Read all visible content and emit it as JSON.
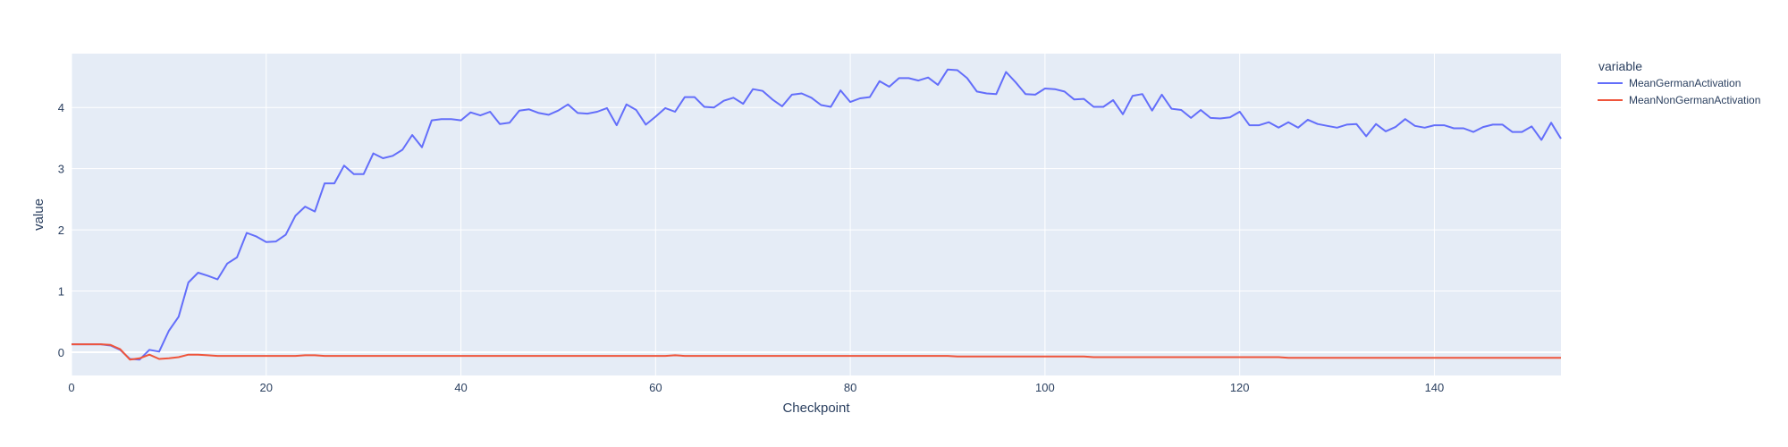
{
  "chart_data": {
    "type": "line",
    "title": "",
    "xlabel": "Checkpoint",
    "ylabel": "value",
    "xlim": [
      0,
      153
    ],
    "ylim": [
      -0.38,
      4.88
    ],
    "x_ticks": [
      0,
      20,
      40,
      60,
      80,
      100,
      120,
      140
    ],
    "y_ticks": [
      0,
      1,
      2,
      3,
      4
    ],
    "grid": true,
    "legend": {
      "title": "variable",
      "position": "right"
    },
    "plot_bg": "#e5ecf6",
    "series": [
      {
        "name": "MeanGermanActivation",
        "color": "#636efa",
        "values": [
          0.13,
          0.13,
          0.13,
          0.13,
          0.11,
          0.04,
          -0.11,
          -0.12,
          0.04,
          0.01,
          0.35,
          0.58,
          1.14,
          1.3,
          1.25,
          1.19,
          1.45,
          1.55,
          1.95,
          1.89,
          1.8,
          1.81,
          1.92,
          2.23,
          2.38,
          2.3,
          2.76,
          2.76,
          3.05,
          2.91,
          2.91,
          3.25,
          3.17,
          3.21,
          3.31,
          3.55,
          3.35,
          3.79,
          3.81,
          3.81,
          3.79,
          3.92,
          3.87,
          3.93,
          3.73,
          3.75,
          3.95,
          3.97,
          3.91,
          3.88,
          3.95,
          4.05,
          3.91,
          3.9,
          3.93,
          3.99,
          3.71,
          4.05,
          3.96,
          3.72,
          3.85,
          3.99,
          3.93,
          4.17,
          4.17,
          4.01,
          4.0,
          4.11,
          4.16,
          4.06,
          4.3,
          4.27,
          4.13,
          4.02,
          4.21,
          4.23,
          4.16,
          4.04,
          4.01,
          4.28,
          4.09,
          4.15,
          4.17,
          4.43,
          4.34,
          4.48,
          4.48,
          4.44,
          4.49,
          4.37,
          4.62,
          4.61,
          4.48,
          4.26,
          4.23,
          4.22,
          4.58,
          4.41,
          4.22,
          4.21,
          4.31,
          4.3,
          4.26,
          4.13,
          4.14,
          4.01,
          4.01,
          4.12,
          3.89,
          4.19,
          4.22,
          3.95,
          4.21,
          3.98,
          3.96,
          3.83,
          3.96,
          3.83,
          3.82,
          3.84,
          3.93,
          3.71,
          3.71,
          3.76,
          3.67,
          3.76,
          3.67,
          3.8,
          3.73,
          3.7,
          3.67,
          3.72,
          3.73,
          3.53,
          3.73,
          3.61,
          3.68,
          3.81,
          3.7,
          3.67,
          3.71,
          3.71,
          3.66,
          3.66,
          3.6,
          3.68,
          3.72,
          3.72,
          3.6,
          3.6,
          3.69,
          3.47,
          3.75,
          3.49
        ]
      },
      {
        "name": "MeanNonGermanActivation",
        "color": "#ef553b",
        "values": [
          0.13,
          0.13,
          0.13,
          0.13,
          0.12,
          0.05,
          -0.12,
          -0.1,
          -0.04,
          -0.11,
          -0.1,
          -0.08,
          -0.04,
          -0.04,
          -0.05,
          -0.06,
          -0.06,
          -0.06,
          -0.06,
          -0.06,
          -0.06,
          -0.06,
          -0.06,
          -0.06,
          -0.05,
          -0.05,
          -0.06,
          -0.06,
          -0.06,
          -0.06,
          -0.06,
          -0.06,
          -0.06,
          -0.06,
          -0.06,
          -0.06,
          -0.06,
          -0.06,
          -0.06,
          -0.06,
          -0.06,
          -0.06,
          -0.06,
          -0.06,
          -0.06,
          -0.06,
          -0.06,
          -0.06,
          -0.06,
          -0.06,
          -0.06,
          -0.06,
          -0.06,
          -0.06,
          -0.06,
          -0.06,
          -0.06,
          -0.06,
          -0.06,
          -0.06,
          -0.06,
          -0.06,
          -0.05,
          -0.06,
          -0.06,
          -0.06,
          -0.06,
          -0.06,
          -0.06,
          -0.06,
          -0.06,
          -0.06,
          -0.06,
          -0.06,
          -0.06,
          -0.06,
          -0.06,
          -0.06,
          -0.06,
          -0.06,
          -0.06,
          -0.06,
          -0.06,
          -0.06,
          -0.06,
          -0.06,
          -0.06,
          -0.06,
          -0.06,
          -0.06,
          -0.06,
          -0.07,
          -0.07,
          -0.07,
          -0.07,
          -0.07,
          -0.07,
          -0.07,
          -0.07,
          -0.07,
          -0.07,
          -0.07,
          -0.07,
          -0.07,
          -0.07,
          -0.08,
          -0.08,
          -0.08,
          -0.08,
          -0.08,
          -0.08,
          -0.08,
          -0.08,
          -0.08,
          -0.08,
          -0.08,
          -0.08,
          -0.08,
          -0.08,
          -0.08,
          -0.08,
          -0.08,
          -0.08,
          -0.08,
          -0.08,
          -0.09,
          -0.09,
          -0.09,
          -0.09,
          -0.09,
          -0.09,
          -0.09,
          -0.09,
          -0.09,
          -0.09,
          -0.09,
          -0.09,
          -0.09,
          -0.09,
          -0.09,
          -0.09,
          -0.09,
          -0.09,
          -0.09,
          -0.09,
          -0.09,
          -0.09,
          -0.09,
          -0.09,
          -0.09,
          -0.09,
          -0.09,
          -0.09,
          -0.09
        ]
      }
    ]
  }
}
